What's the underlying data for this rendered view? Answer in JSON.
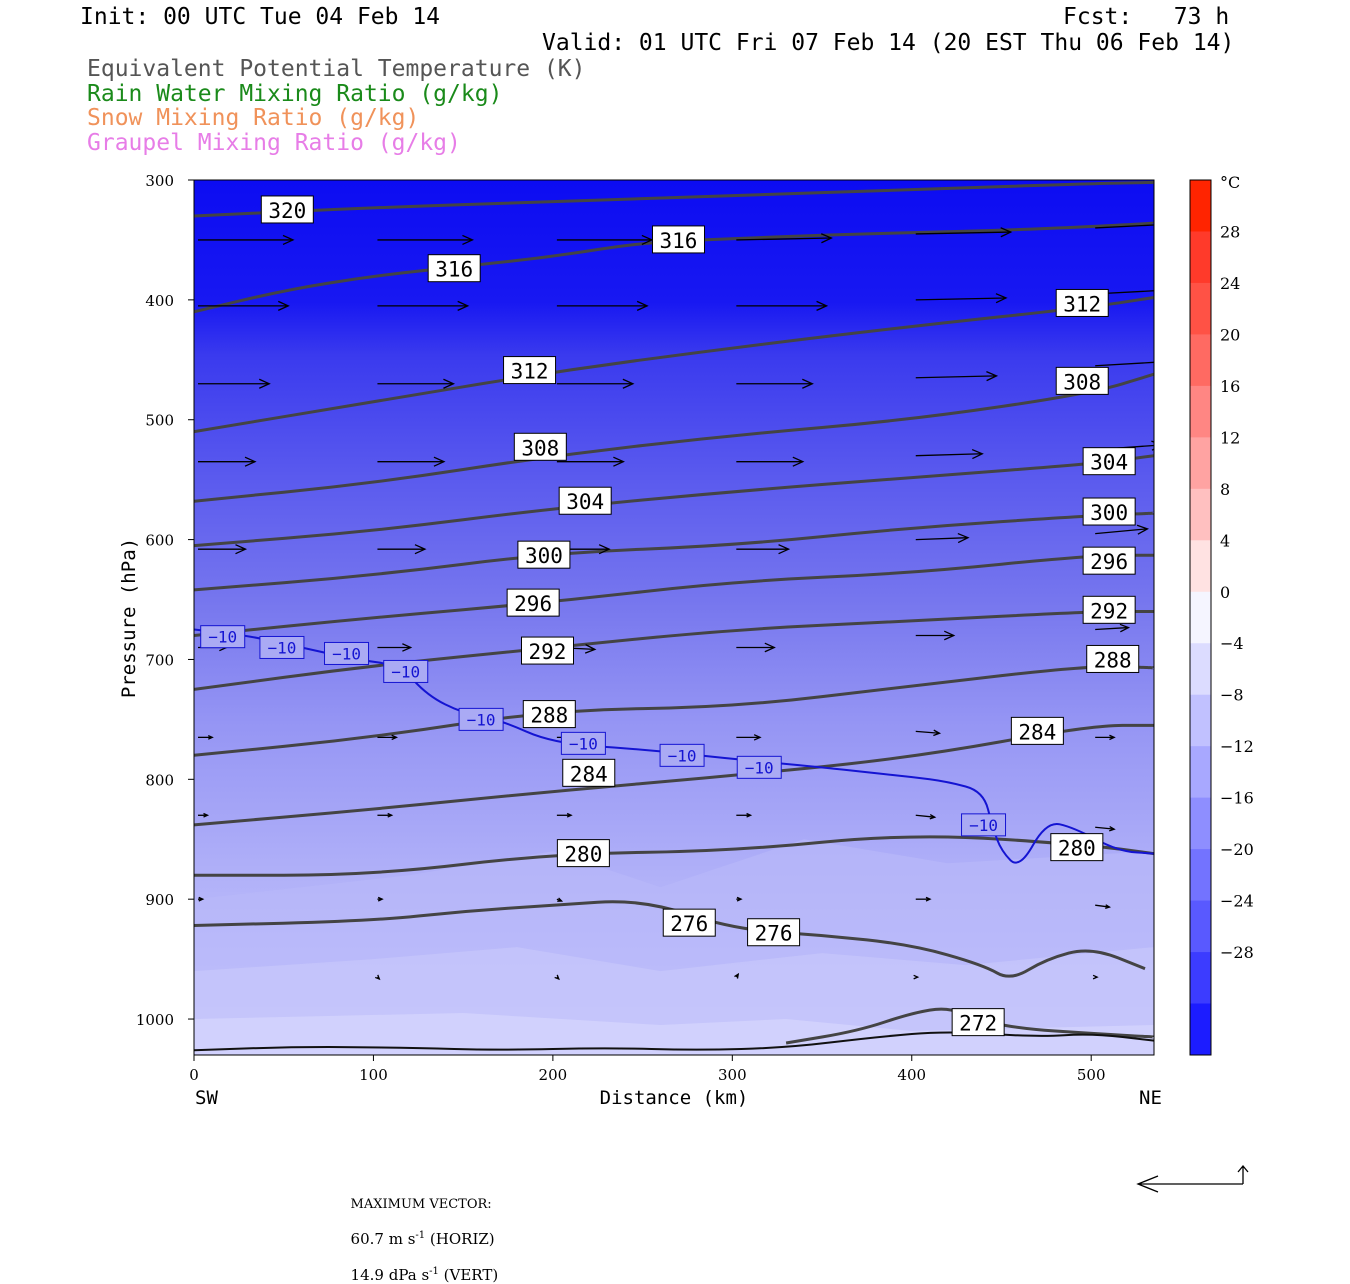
{
  "header": {
    "init": "Init: 00 UTC Tue 04 Feb 14",
    "fcst": "Fcst:   73 h",
    "valid": "Valid: 01 UTC Fri 07 Feb 14 (20 EST Thu 06 Feb 14)",
    "fields": [
      {
        "label": "Equivalent Potential Temperature (K)",
        "color": "#555555"
      },
      {
        "label": "Rain Water Mixing Ratio (g/kg)",
        "color": "#1a8a1a"
      },
      {
        "label": "Snow Mixing Ratio (g/kg)",
        "color": "#f0925a"
      },
      {
        "label": "Graupel Mixing Ratio (g/kg)",
        "color": "#e77de7"
      }
    ]
  },
  "chart_data": {
    "type": "cross-section",
    "xlabel": "Distance (km)",
    "ylabel": "Pressure (hPa)",
    "x_ticks": [
      0,
      100,
      200,
      300,
      400,
      500
    ],
    "y_ticks": [
      300,
      400,
      500,
      600,
      700,
      800,
      900,
      1000
    ],
    "xlim": [
      0,
      535
    ],
    "ylim": [
      1030,
      300
    ],
    "x_end_labels": {
      "left": "SW",
      "right": "NE"
    },
    "temperature_colorbar": {
      "unit": "°C",
      "levels": [
        28,
        24,
        20,
        16,
        12,
        8,
        4,
        0,
        -4,
        -8,
        -12,
        -16,
        -20,
        -24,
        -28
      ],
      "colors": [
        "#ff2400",
        "#ff3a2a",
        "#ff5245",
        "#ff6a62",
        "#ff8683",
        "#ffa3a2",
        "#ffc0c0",
        "#ffe2e2",
        "#f5f5ff",
        "#dcdcff",
        "#c1c1ff",
        "#a8a8ff",
        "#8e8eff",
        "#7373ff",
        "#5959ff",
        "#3c3cff",
        "#1c1cff"
      ]
    },
    "theta_e_contours": [
      {
        "level": 320,
        "points": [
          [
            0,
            330
          ],
          [
            100,
            323
          ],
          [
            200,
            318
          ],
          [
            300,
            313
          ],
          [
            400,
            308
          ],
          [
            500,
            303
          ],
          [
            535,
            302
          ]
        ],
        "labels": [
          [
            52,
            325
          ]
        ]
      },
      {
        "level": 316,
        "points": [
          [
            0,
            410
          ],
          [
            50,
            392
          ],
          [
            100,
            380
          ],
          [
            150,
            372
          ],
          [
            200,
            364
          ],
          [
            250,
            352
          ],
          [
            300,
            349
          ],
          [
            350,
            346
          ],
          [
            400,
            344
          ],
          [
            450,
            342
          ],
          [
            500,
            339
          ],
          [
            535,
            336
          ]
        ],
        "labels": [
          [
            145,
            374
          ],
          [
            270,
            350
          ]
        ]
      },
      {
        "level": 312,
        "points": [
          [
            0,
            510
          ],
          [
            100,
            485
          ],
          [
            200,
            460
          ],
          [
            300,
            440
          ],
          [
            400,
            422
          ],
          [
            500,
            406
          ],
          [
            535,
            398
          ]
        ],
        "labels": [
          [
            187,
            459
          ],
          [
            495,
            403
          ]
        ]
      },
      {
        "level": 308,
        "points": [
          [
            0,
            568
          ],
          [
            100,
            553
          ],
          [
            200,
            530
          ],
          [
            300,
            513
          ],
          [
            400,
            500
          ],
          [
            500,
            478
          ],
          [
            535,
            462
          ]
        ],
        "labels": [
          [
            193,
            523
          ],
          [
            495,
            468
          ]
        ]
      },
      {
        "level": 304,
        "points": [
          [
            0,
            605
          ],
          [
            100,
            593
          ],
          [
            200,
            574
          ],
          [
            300,
            560
          ],
          [
            400,
            548
          ],
          [
            500,
            537
          ],
          [
            535,
            530
          ]
        ],
        "labels": [
          [
            218,
            568
          ],
          [
            510,
            535
          ]
        ]
      },
      {
        "level": 300,
        "points": [
          [
            0,
            642
          ],
          [
            100,
            630
          ],
          [
            200,
            611
          ],
          [
            300,
            605
          ],
          [
            400,
            590
          ],
          [
            500,
            580
          ],
          [
            535,
            578
          ]
        ],
        "labels": [
          [
            195,
            613
          ],
          [
            510,
            577
          ]
        ]
      },
      {
        "level": 296,
        "points": [
          [
            0,
            680
          ],
          [
            100,
            665
          ],
          [
            200,
            652
          ],
          [
            300,
            635
          ],
          [
            400,
            628
          ],
          [
            500,
            613
          ],
          [
            535,
            613
          ]
        ],
        "labels": [
          [
            189,
            653
          ],
          [
            510,
            618
          ]
        ]
      },
      {
        "level": 292,
        "points": [
          [
            0,
            725
          ],
          [
            100,
            705
          ],
          [
            200,
            690
          ],
          [
            300,
            675
          ],
          [
            400,
            668
          ],
          [
            500,
            660
          ],
          [
            535,
            660
          ]
        ],
        "labels": [
          [
            197,
            693
          ],
          [
            510,
            659
          ]
        ]
      },
      {
        "level": 288,
        "points": [
          [
            0,
            780
          ],
          [
            100,
            765
          ],
          [
            200,
            742
          ],
          [
            300,
            740
          ],
          [
            400,
            722
          ],
          [
            500,
            705
          ],
          [
            535,
            707
          ]
        ],
        "labels": [
          [
            198,
            746
          ],
          [
            512,
            700
          ]
        ]
      },
      {
        "level": 284,
        "points": [
          [
            0,
            838
          ],
          [
            100,
            825
          ],
          [
            200,
            810
          ],
          [
            300,
            797
          ],
          [
            400,
            782
          ],
          [
            500,
            755
          ],
          [
            535,
            755
          ]
        ],
        "labels": [
          [
            220,
            795
          ],
          [
            470,
            760
          ]
        ]
      },
      {
        "level": 280,
        "points": [
          [
            0,
            880
          ],
          [
            100,
            880
          ],
          [
            200,
            862
          ],
          [
            300,
            860
          ],
          [
            400,
            845
          ],
          [
            500,
            855
          ],
          [
            535,
            862
          ]
        ],
        "labels": [
          [
            217,
            862
          ],
          [
            492,
            857
          ]
        ]
      },
      {
        "level": 276,
        "points": [
          [
            0,
            922
          ],
          [
            100,
            918
          ],
          [
            150,
            910
          ],
          [
            200,
            905
          ],
          [
            250,
            900
          ],
          [
            300,
            925
          ],
          [
            350,
            930
          ],
          [
            400,
            938
          ],
          [
            440,
            955
          ],
          [
            455,
            968
          ],
          [
            475,
            950
          ],
          [
            500,
            940
          ],
          [
            530,
            958
          ]
        ],
        "labels": [
          [
            276,
            920
          ],
          [
            323,
            928
          ]
        ]
      },
      {
        "level": 272,
        "points": [
          [
            330,
            1020
          ],
          [
            370,
            1010
          ],
          [
            400,
            995
          ],
          [
            420,
            990
          ],
          [
            435,
            1000
          ],
          [
            460,
            1008
          ],
          [
            500,
            1012
          ],
          [
            535,
            1015
          ]
        ],
        "labels": [
          [
            437,
            1003
          ]
        ]
      }
    ],
    "isotherm_minus_10C": {
      "color": "#1414d2",
      "points": [
        [
          0,
          675
        ],
        [
          30,
          680
        ],
        [
          60,
          690
        ],
        [
          90,
          700
        ],
        [
          115,
          705
        ],
        [
          130,
          730
        ],
        [
          150,
          745
        ],
        [
          170,
          750
        ],
        [
          200,
          770
        ],
        [
          250,
          775
        ],
        [
          300,
          783
        ],
        [
          350,
          790
        ],
        [
          380,
          795
        ],
        [
          400,
          798
        ],
        [
          420,
          802
        ],
        [
          440,
          810
        ],
        [
          445,
          840
        ],
        [
          450,
          860
        ],
        [
          460,
          875
        ],
        [
          475,
          835
        ],
        [
          490,
          840
        ],
        [
          515,
          860
        ],
        [
          535,
          862
        ]
      ],
      "labels": [
        [
          16,
          681
        ],
        [
          49,
          690
        ],
        [
          85,
          695
        ],
        [
          118,
          710
        ],
        [
          160,
          750
        ],
        [
          217,
          770
        ],
        [
          272,
          780
        ],
        [
          315,
          790
        ],
        [
          440,
          838
        ]
      ]
    },
    "wind_vectors": [
      {
        "x": 0,
        "p": 350,
        "u": 1.0,
        "w": 0.0
      },
      {
        "x": 100,
        "p": 350,
        "u": 1.0,
        "w": 0.0
      },
      {
        "x": 200,
        "p": 350,
        "u": 1.0,
        "w": 0.0
      },
      {
        "x": 300,
        "p": 350,
        "u": 1.0,
        "w": 0.02
      },
      {
        "x": 400,
        "p": 345,
        "u": 1.0,
        "w": 0.02
      },
      {
        "x": 500,
        "p": 340,
        "u": 1.0,
        "w": 0.05
      },
      {
        "x": 0,
        "p": 405,
        "u": 0.95,
        "w": 0.0
      },
      {
        "x": 100,
        "p": 405,
        "u": 0.95,
        "w": 0.0
      },
      {
        "x": 200,
        "p": 405,
        "u": 0.95,
        "w": 0.0
      },
      {
        "x": 300,
        "p": 405,
        "u": 0.95,
        "w": 0.0
      },
      {
        "x": 400,
        "p": 400,
        "u": 0.95,
        "w": 0.02
      },
      {
        "x": 500,
        "p": 395,
        "u": 0.95,
        "w": 0.05
      },
      {
        "x": 0,
        "p": 470,
        "u": 0.75,
        "w": 0.0
      },
      {
        "x": 100,
        "p": 470,
        "u": 0.8,
        "w": 0.0
      },
      {
        "x": 200,
        "p": 470,
        "u": 0.8,
        "w": 0.0
      },
      {
        "x": 300,
        "p": 470,
        "u": 0.8,
        "w": 0.0
      },
      {
        "x": 400,
        "p": 465,
        "u": 0.85,
        "w": 0.02
      },
      {
        "x": 500,
        "p": 455,
        "u": 0.85,
        "w": 0.05
      },
      {
        "x": 0,
        "p": 535,
        "u": 0.6,
        "w": 0.0
      },
      {
        "x": 100,
        "p": 535,
        "u": 0.7,
        "w": 0.0
      },
      {
        "x": 200,
        "p": 535,
        "u": 0.7,
        "w": 0.0
      },
      {
        "x": 300,
        "p": 535,
        "u": 0.7,
        "w": 0.0
      },
      {
        "x": 400,
        "p": 530,
        "u": 0.7,
        "w": 0.02
      },
      {
        "x": 500,
        "p": 525,
        "u": 0.7,
        "w": 0.05
      },
      {
        "x": 0,
        "p": 608,
        "u": 0.5,
        "w": 0.0
      },
      {
        "x": 100,
        "p": 608,
        "u": 0.5,
        "w": 0.0
      },
      {
        "x": 200,
        "p": 608,
        "u": 0.55,
        "w": 0.0
      },
      {
        "x": 300,
        "p": 608,
        "u": 0.55,
        "w": 0.0
      },
      {
        "x": 400,
        "p": 600,
        "u": 0.55,
        "w": 0.02
      },
      {
        "x": 500,
        "p": 595,
        "u": 0.55,
        "w": 0.05
      },
      {
        "x": 0,
        "p": 690,
        "u": 0.3,
        "w": 0.0
      },
      {
        "x": 100,
        "p": 690,
        "u": 0.35,
        "w": 0.0
      },
      {
        "x": 200,
        "p": 690,
        "u": 0.4,
        "w": -0.02
      },
      {
        "x": 300,
        "p": 690,
        "u": 0.4,
        "w": 0.0
      },
      {
        "x": 400,
        "p": 680,
        "u": 0.4,
        "w": 0.0
      },
      {
        "x": 500,
        "p": 675,
        "u": 0.35,
        "w": 0.02
      },
      {
        "x": 0,
        "p": 765,
        "u": 0.15,
        "w": 0.0
      },
      {
        "x": 100,
        "p": 765,
        "u": 0.2,
        "w": 0.0
      },
      {
        "x": 200,
        "p": 765,
        "u": 0.25,
        "w": 0.0
      },
      {
        "x": 300,
        "p": 765,
        "u": 0.25,
        "w": 0.0
      },
      {
        "x": 400,
        "p": 760,
        "u": 0.25,
        "w": -0.02
      },
      {
        "x": 500,
        "p": 765,
        "u": 0.2,
        "w": 0.0
      },
      {
        "x": 0,
        "p": 830,
        "u": 0.1,
        "w": 0.0
      },
      {
        "x": 100,
        "p": 830,
        "u": 0.15,
        "w": 0.0
      },
      {
        "x": 200,
        "p": 830,
        "u": 0.15,
        "w": 0.0
      },
      {
        "x": 300,
        "p": 830,
        "u": 0.15,
        "w": 0.0
      },
      {
        "x": 400,
        "p": 830,
        "u": 0.2,
        "w": -0.02
      },
      {
        "x": 500,
        "p": 840,
        "u": 0.2,
        "w": -0.02
      },
      {
        "x": 0,
        "p": 900,
        "u": 0.05,
        "w": 0.0
      },
      {
        "x": 100,
        "p": 900,
        "u": 0.05,
        "w": 0.0
      },
      {
        "x": 200,
        "p": 900,
        "u": 0.05,
        "w": -0.02
      },
      {
        "x": 300,
        "p": 900,
        "u": 0.05,
        "w": 0.0
      },
      {
        "x": 400,
        "p": 900,
        "u": 0.15,
        "w": 0.0
      },
      {
        "x": 500,
        "p": 905,
        "u": 0.15,
        "w": -0.02
      },
      {
        "x": 100,
        "p": 965,
        "u": 0.02,
        "w": -0.02
      },
      {
        "x": 200,
        "p": 965,
        "u": 0.02,
        "w": -0.02
      },
      {
        "x": 300,
        "p": 965,
        "u": 0.02,
        "w": 0.03
      },
      {
        "x": 400,
        "p": 965,
        "u": 0.02,
        "w": 0.0
      },
      {
        "x": 500,
        "p": 965,
        "u": 0.02,
        "w": 0.0
      }
    ]
  },
  "footer": {
    "max_label": "MAXIMUM VECTOR:",
    "horiz_value": "60.7 m s",
    "horiz_exp": "-1",
    "horiz_tag": " (HORIZ)",
    "vert_value": "14.9 dPa s",
    "vert_exp": "-1",
    "vert_tag": " (VERT)"
  }
}
